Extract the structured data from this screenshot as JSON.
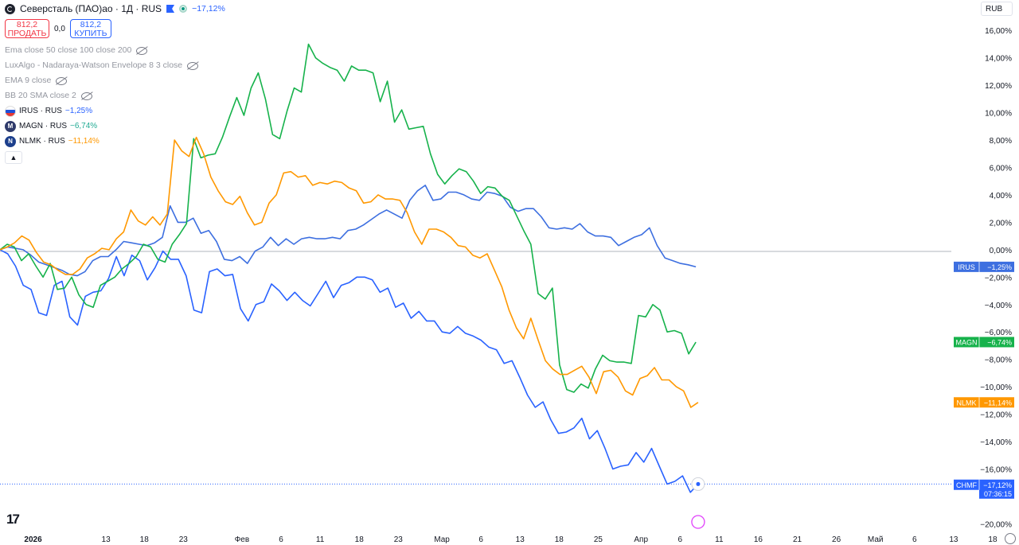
{
  "header": {
    "title": "Северсталь (ПАО)ао · 1Д · RUS",
    "change": "−17,12%",
    "sell_price": "812,2",
    "sell_label": "ПРОДАТЬ",
    "spread": "0,0",
    "buy_price": "812,2",
    "buy_label": "КУПИТЬ",
    "currency": "RUB"
  },
  "indicators": [
    "Ema close 50 close 100 close 200",
    "LuxAlgo - Nadaraya-Watson Envelope 8 3 close",
    "EMA 9 close",
    "BB 20 SMA close 2"
  ],
  "comparisons": [
    {
      "name": "IRUS · RUS",
      "change": "−1,25%",
      "color": "#2962ff",
      "icon": "russia-flag-icon"
    },
    {
      "name": "MAGN · RUS",
      "change": "−6,74%",
      "color": "#22ab94",
      "icon": "magn-logo-icon"
    },
    {
      "name": "NLMK · RUS",
      "change": "−11,14%",
      "color": "#ff9800",
      "icon": "nlmk-logo-icon"
    }
  ],
  "price_labels": [
    {
      "ticker": "IRUS",
      "value": "−1,25%",
      "color": "#3d6fe0",
      "y": -1.25
    },
    {
      "ticker": "MAGN",
      "value": "−6,74%",
      "color": "#16b24b",
      "y": -6.74
    },
    {
      "ticker": "NLMK",
      "value": "−11,14%",
      "color": "#ff9800",
      "y": -11.14
    },
    {
      "ticker": "CHMF",
      "value": "−17,12%",
      "sub": "07:36:15",
      "color": "#2962ff",
      "y": -17.12
    }
  ],
  "chart_data": {
    "type": "line",
    "y_axis_labels": [
      "16,00%",
      "14,00%",
      "12,00%",
      "10,00%",
      "8,00%",
      "6,00%",
      "4,00%",
      "2,00%",
      "0,00%",
      "−2,00%",
      "−4,00%",
      "−6,00%",
      "−8,00%",
      "−10,00%",
      "−12,00%",
      "−14,00%",
      "−16,00%",
      "−20,00%"
    ],
    "y_axis_values": [
      16,
      14,
      12,
      10,
      8,
      6,
      4,
      2,
      0,
      -2,
      -4,
      -6,
      -8,
      -10,
      -12,
      -14,
      -16,
      -20
    ],
    "ylim": [
      -20.5,
      17
    ],
    "x_axis_labels": [
      "2026",
      "13",
      "18",
      "23",
      "Фев",
      "6",
      "11",
      "18",
      "23",
      "Мар",
      "6",
      "13",
      "18",
      "25",
      "Апр",
      "6",
      "11",
      "16",
      "21",
      "26",
      "Май",
      "6",
      "13",
      "18"
    ],
    "x_axis_positions": [
      0.3,
      10,
      15.1,
      20.3,
      28.1,
      33.3,
      38.5,
      43.7,
      48.9,
      54.7,
      59.9,
      65.1,
      70.3,
      75.5,
      81.2,
      86.4,
      91.6,
      96.8,
      102.0,
      107.2,
      112.4,
      117.6,
      122.8,
      128.0
    ],
    "xlim": [
      -4.1,
      131.5
    ],
    "series": [
      {
        "name": "CHMF",
        "color": "#2962ff",
        "values": [
          0,
          -0.3,
          -1.2,
          -2.6,
          -2.9,
          -4.6,
          -4.8,
          -2.6,
          -2.3,
          -4.9,
          -5.5,
          -3.4,
          -3.1,
          -3.0,
          -2.1,
          -0.5,
          -1.9,
          -0.4,
          -0.8,
          -2.2,
          -1.3,
          -0.1,
          -0.7,
          -0.7,
          -1.9,
          -4.4,
          -4.6,
          -1.6,
          -1.4,
          -1.9,
          -1.8,
          -4.3,
          -5.2,
          -4.0,
          -3.8,
          -2.5,
          -3.0,
          -3.7,
          -3.1,
          -3.7,
          -4.1,
          -3.2,
          -2.3,
          -3.5,
          -2.6,
          -2.4,
          -2.0,
          -2.0,
          -2.2,
          -3.1,
          -2.8,
          -4.2,
          -3.9,
          -5.0,
          -4.5,
          -5.2,
          -5.2,
          -6.0,
          -6.1,
          -5.6,
          -6.1,
          -6.3,
          -6.6,
          -7.1,
          -7.3,
          -8.3,
          -8.1,
          -9.3,
          -10.6,
          -11.5,
          -11.1,
          -12.4,
          -13.4,
          -13.3,
          -13.0,
          -12.3,
          -13.8,
          -13.2,
          -14.5,
          -16.0,
          -15.8,
          -15.7,
          -14.8,
          -15.5,
          -14.5,
          -15.8,
          -17.1,
          -16.9,
          -16.5,
          -17.7,
          -17.1
        ]
      },
      {
        "name": "IRUS",
        "color": "#3d6fe0",
        "values": [
          0,
          0.2,
          0.1,
          0,
          -0.4,
          -0.9,
          -1.1,
          -1.3,
          -1.5,
          -1.8,
          -1.9,
          -1.6,
          -0.8,
          -0.5,
          -0.5,
          0,
          0.6,
          0.5,
          0.4,
          0.3,
          0.5,
          0.9,
          3.2,
          2.0,
          2.0,
          2.3,
          1.2,
          1.4,
          0.6,
          -0.7,
          -0.8,
          -0.5,
          -1.0,
          -0.1,
          0.2,
          0.9,
          0.3,
          0.8,
          0.4,
          0.8,
          0.9,
          0.8,
          0.8,
          0.9,
          0.8,
          1.4,
          1.5,
          1.8,
          2.2,
          2.6,
          2.9,
          2.6,
          2.3,
          3.6,
          4.3,
          4.7,
          3.6,
          3.7,
          4.2,
          4.2,
          4.0,
          3.7,
          3.6,
          4.2,
          4.1,
          3.9,
          3.1,
          2.8,
          3.0,
          3.0,
          2.4,
          1.6,
          1.5,
          1.6,
          1.5,
          1.9,
          1.3,
          1.0,
          1.0,
          0.9,
          0.3,
          0.6,
          0.9,
          1.1,
          1.6,
          0.3,
          -0.6,
          -0.8,
          -1.0,
          -1.1,
          -1.25
        ]
      },
      {
        "name": "MAGN",
        "color": "#16b24b",
        "values": [
          0,
          0.4,
          0.2,
          -0.8,
          -0.3,
          -1.2,
          -2.0,
          -1.0,
          -2.9,
          -2.8,
          -2.0,
          -3.3,
          -4.0,
          -4.2,
          -2.6,
          -2.3,
          -2.0,
          -1.4,
          -1.0,
          -0.5,
          0.4,
          0.2,
          -0.7,
          -0.9,
          0.4,
          1.1,
          1.9,
          8.1,
          6.7,
          6.9,
          7.0,
          8.2,
          9.7,
          11.1,
          9.8,
          11.8,
          12.9,
          11.0,
          8.4,
          8.1,
          10.1,
          11.8,
          11.5,
          15.0,
          14.0,
          13.6,
          13.3,
          13.1,
          12.3,
          13.4,
          13.1,
          13.1,
          12.9,
          10.8,
          12.3,
          9.3,
          10.2,
          8.8,
          8.9,
          9.0,
          7.0,
          5.5,
          4.8,
          5.4,
          5.9,
          5.7,
          5.0,
          4.1,
          4.6,
          4.5,
          3.9,
          3.6,
          2.5,
          1.4,
          0.4,
          -3.2,
          -3.6,
          -2.8,
          -8.4,
          -10.2,
          -10.4,
          -9.8,
          -10.1,
          -8.7,
          -7.7,
          -8.1,
          -8.2,
          -8.2,
          -8.3,
          -4.8,
          -4.9,
          -4.0,
          -4.4,
          -6.0,
          -5.9,
          -6.1,
          -7.6,
          -6.74
        ]
      },
      {
        "name": "NLMK",
        "color": "#ff9800",
        "values": [
          0,
          0.2,
          0.5,
          1.0,
          0.7,
          -0.2,
          -0.9,
          -1.1,
          -1.5,
          -1.8,
          -1.8,
          -1.4,
          -0.6,
          -0.3,
          0.1,
          0,
          0.8,
          1.3,
          2.9,
          2.1,
          1.8,
          2.4,
          1.8,
          2.6,
          8.0,
          7.2,
          6.8,
          8.2,
          7.0,
          5.3,
          4.3,
          3.5,
          3.3,
          3.9,
          2.7,
          1.8,
          2.0,
          3.4,
          4.0,
          5.6,
          5.7,
          5.3,
          5.4,
          4.7,
          4.9,
          4.8,
          5.0,
          4.9,
          4.5,
          4.3,
          3.4,
          3.5,
          4.0,
          3.7,
          3.7,
          3.6,
          2.7,
          1.3,
          0.4,
          1.5,
          1.5,
          1.3,
          0.9,
          0.3,
          0.2,
          -0.4,
          -0.6,
          -0.3,
          -1.5,
          -2.7,
          -4.4,
          -5.7,
          -6.5,
          -5.0,
          -6.6,
          -8.1,
          -8.7,
          -9.1,
          -9.1,
          -8.8,
          -8.5,
          -9.3,
          -10.5,
          -8.9,
          -8.8,
          -9.3,
          -10.3,
          -10.6,
          -9.4,
          -9.2,
          -8.6,
          -9.5,
          -9.5,
          -10.0,
          -10.3,
          -11.5,
          -11.14
        ]
      }
    ]
  }
}
